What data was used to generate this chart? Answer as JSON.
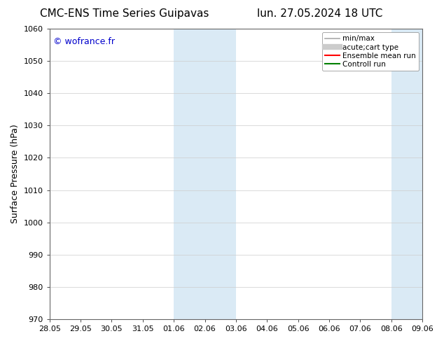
{
  "title_left": "CMC-ENS Time Series Guipavas",
  "title_right": "lun. 27.05.2024 18 UTC",
  "ylabel": "Surface Pressure (hPa)",
  "ylim": [
    970,
    1060
  ],
  "yticks": [
    970,
    980,
    990,
    1000,
    1010,
    1020,
    1030,
    1040,
    1050,
    1060
  ],
  "xtick_labels": [
    "28.05",
    "29.05",
    "30.05",
    "31.05",
    "01.06",
    "02.06",
    "03.06",
    "04.06",
    "05.06",
    "06.06",
    "07.06",
    "08.06",
    "09.06"
  ],
  "xlim_days": [
    0,
    12
  ],
  "shaded_bands": [
    {
      "x_start": 4,
      "x_end": 6
    },
    {
      "x_start": 11,
      "x_end": 12
    }
  ],
  "shaded_color": "#daeaf5",
  "watermark": "© wofrance.fr",
  "watermark_color": "#0000cc",
  "legend_entries": [
    {
      "label": "min/max",
      "color": "#aaaaaa",
      "lw": 1.2
    },
    {
      "label": "acute;cart type",
      "color": "#cccccc",
      "lw": 6
    },
    {
      "label": "Ensemble mean run",
      "color": "#ff0000",
      "lw": 1.5
    },
    {
      "label": "Controll run",
      "color": "#008000",
      "lw": 1.5
    }
  ],
  "background_color": "#ffffff",
  "grid_color": "#cccccc",
  "title_fontsize": 11,
  "ylabel_fontsize": 9,
  "tick_fontsize": 8,
  "legend_fontsize": 7.5
}
